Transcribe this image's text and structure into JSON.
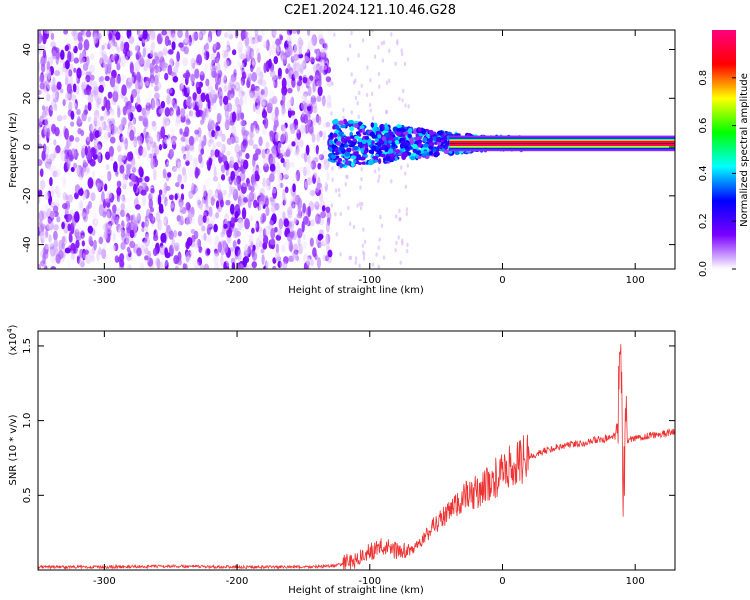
{
  "title": "C2E1.2024.121.10.46.G28",
  "chart_data": [
    {
      "type": "heatmap",
      "xlabel": "Height of straight line (km)",
      "ylabel": "Frequency (Hz)",
      "xlim": [
        -350,
        130
      ],
      "ylim": [
        -50,
        48
      ],
      "xticks": [
        -300,
        -200,
        -100,
        0,
        100
      ],
      "yticks": [
        -40,
        -20,
        0,
        20,
        40
      ],
      "grid": false,
      "noise_region_x": [
        -350,
        -130
      ],
      "signal_center_frequency_hz": 1.5,
      "signal_narrow_band_x": [
        0,
        130
      ],
      "colorbar": {
        "label": "Normalized spectral amplitude",
        "range": [
          0.0,
          1.0
        ],
        "ticks": [
          0.0,
          0.2,
          0.4,
          0.6,
          0.8
        ],
        "colors": [
          "#ffffff",
          "#7a00ff",
          "#0000ff",
          "#00ffff",
          "#00ff00",
          "#ffff00",
          "#ff0000",
          "#ff0080"
        ]
      }
    },
    {
      "type": "line",
      "xlabel": "Height of straight line (km)",
      "ylabel": "SNR (10 * v/v)",
      "scale_label": "(x10",
      "scale_exponent": "4",
      "xlim": [
        -350,
        130
      ],
      "ylim": [
        0,
        1.6
      ],
      "xticks": [
        -300,
        -200,
        -100,
        0,
        100
      ],
      "yticks": [
        0.5,
        1.0,
        1.5
      ],
      "grid": false,
      "color": "#ee3333",
      "series": [
        {
          "x": [
            -350,
            -300,
            -250,
            -200,
            -150,
            -130,
            -120,
            -110,
            -100,
            -90,
            -80,
            -70,
            -60,
            -50,
            -40,
            -30,
            -20,
            -10,
            0,
            10,
            20,
            30,
            40,
            50,
            60,
            70,
            80,
            85,
            88,
            90,
            91,
            92,
            95,
            100,
            110,
            120,
            130
          ],
          "values": [
            0.02,
            0.02,
            0.025,
            0.02,
            0.02,
            0.025,
            0.04,
            0.07,
            0.12,
            0.16,
            0.13,
            0.12,
            0.2,
            0.32,
            0.38,
            0.48,
            0.52,
            0.58,
            0.65,
            0.71,
            0.76,
            0.79,
            0.82,
            0.84,
            0.85,
            0.87,
            0.88,
            0.89,
            1.1,
            1.48,
            0.4,
            0.82,
            0.87,
            0.88,
            0.9,
            0.91,
            0.93
          ]
        }
      ]
    }
  ]
}
